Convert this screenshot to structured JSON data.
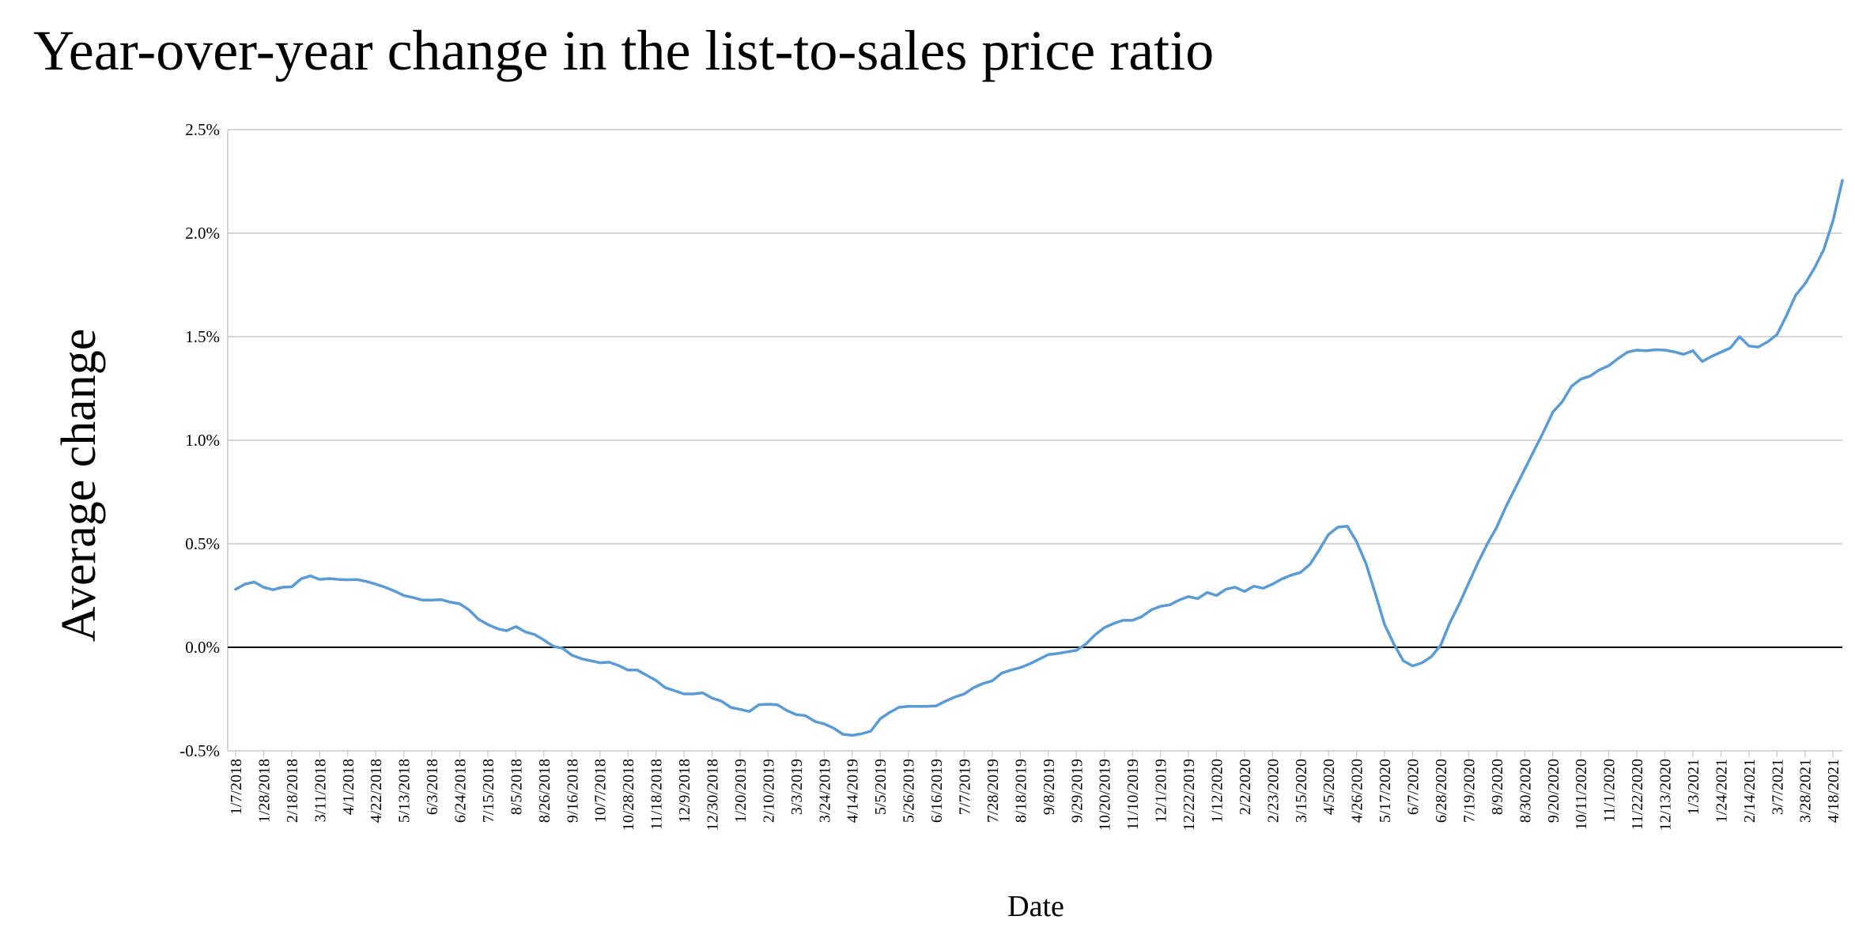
{
  "chart_data": {
    "type": "line",
    "title": "Year-over-year change in the list-to-sales price ratio",
    "xlabel": "Date",
    "ylabel": "Average change",
    "ylim": [
      -0.5,
      2.5
    ],
    "y_unit": "%",
    "y_ticks": [
      "-0.5%",
      "0.0%",
      "0.5%",
      "1.0%",
      "1.5%",
      "2.0%",
      "2.5%"
    ],
    "grid": true,
    "line_color": "#5b9bd5",
    "x_tick_labels": [
      "1/7/2018",
      "1/28/2018",
      "2/18/2018",
      "3/11/2018",
      "4/1/2018",
      "4/22/2018",
      "5/13/2018",
      "6/3/2018",
      "6/24/2018",
      "7/15/2018",
      "8/5/2018",
      "8/26/2018",
      "9/16/2018",
      "10/7/2018",
      "10/28/2018",
      "11/18/2018",
      "12/9/2018",
      "12/30/2018",
      "1/20/2019",
      "2/10/2019",
      "3/3/2019",
      "3/24/2019",
      "4/14/2019",
      "5/5/2019",
      "5/26/2019",
      "6/16/2019",
      "7/7/2019",
      "7/28/2019",
      "8/18/2019",
      "9/8/2019",
      "9/29/2019",
      "10/20/2019",
      "11/10/2019",
      "12/1/2019",
      "12/22/2019",
      "1/12/2020",
      "2/2/2020",
      "2/23/2020",
      "3/15/2020",
      "4/5/2020",
      "4/26/2020",
      "5/17/2020",
      "6/7/2020",
      "6/28/2020",
      "7/19/2020",
      "8/9/2020",
      "8/30/2020",
      "9/20/2020",
      "10/11/2020",
      "11/1/2020",
      "11/22/2020",
      "12/13/2020",
      "1/3/2021",
      "1/24/2021",
      "2/14/2021",
      "3/7/2021",
      "3/28/2021",
      "4/18/2021"
    ],
    "series": [
      {
        "values": [
          0.28,
          0.305,
          0.315,
          0.29,
          0.278,
          0.29,
          0.292,
          0.33,
          0.345,
          0.328,
          0.332,
          0.328,
          0.326,
          0.327,
          0.318,
          0.305,
          0.29,
          0.272,
          0.25,
          0.24,
          0.228,
          0.228,
          0.23,
          0.218,
          0.21,
          0.18,
          0.135,
          0.11,
          0.09,
          0.08,
          0.1,
          0.075,
          0.062,
          0.035,
          0.005,
          -0.005,
          -0.038,
          -0.055,
          -0.065,
          -0.075,
          -0.072,
          -0.088,
          -0.11,
          -0.11,
          -0.135,
          -0.16,
          -0.195,
          -0.21,
          -0.225,
          -0.225,
          -0.22,
          -0.245,
          -0.26,
          -0.29,
          -0.3,
          -0.31,
          -0.278,
          -0.275,
          -0.278,
          -0.305,
          -0.325,
          -0.33,
          -0.358,
          -0.37,
          -0.39,
          -0.42,
          -0.425,
          -0.418,
          -0.405,
          -0.345,
          -0.315,
          -0.29,
          -0.285,
          -0.285,
          -0.285,
          -0.283,
          -0.26,
          -0.24,
          -0.225,
          -0.195,
          -0.175,
          -0.162,
          -0.125,
          -0.11,
          -0.098,
          -0.08,
          -0.058,
          -0.035,
          -0.03,
          -0.022,
          -0.015,
          0.015,
          0.06,
          0.095,
          0.115,
          0.13,
          0.13,
          0.148,
          0.18,
          0.198,
          0.205,
          0.228,
          0.245,
          0.235,
          0.265,
          0.25,
          0.28,
          0.29,
          0.27,
          0.295,
          0.285,
          0.305,
          0.33,
          0.348,
          0.362,
          0.4,
          0.47,
          0.545,
          0.58,
          0.585,
          0.51,
          0.405,
          0.26,
          0.11,
          0.015,
          -0.065,
          -0.09,
          -0.075,
          -0.045,
          0.01,
          0.12,
          0.21,
          0.31,
          0.41,
          0.5,
          0.58,
          0.68,
          0.77,
          0.86,
          0.95,
          1.04,
          1.135,
          1.185,
          1.26,
          1.295,
          1.31,
          1.34,
          1.36,
          1.395,
          1.425,
          1.435,
          1.432,
          1.437,
          1.435,
          1.427,
          1.415,
          1.432,
          1.38,
          1.405,
          1.425,
          1.445,
          1.5,
          1.455,
          1.45,
          1.475,
          1.51,
          1.6,
          1.7,
          1.755,
          1.83,
          1.92,
          2.06,
          2.255
        ]
      }
    ]
  }
}
